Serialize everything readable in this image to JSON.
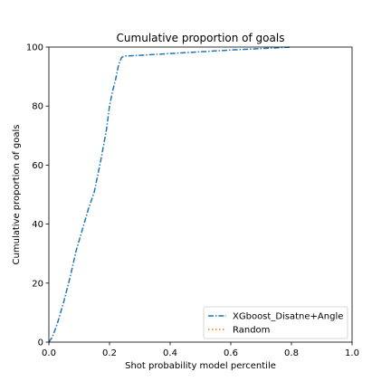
{
  "chart_data": {
    "type": "line",
    "title": "Cumulative proportion of goals",
    "xlabel": "Shot probability model percentile",
    "ylabel": "Cumulative proportion of goals",
    "xlim": [
      0.0,
      1.0
    ],
    "ylim": [
      0,
      100
    ],
    "xticks": [
      "0.0",
      "0.2",
      "0.4",
      "0.6",
      "0.8",
      "1.0"
    ],
    "yticks": [
      "0",
      "20",
      "40",
      "60",
      "80",
      "100"
    ],
    "grid": false,
    "legend_position": "lower-right",
    "series": [
      {
        "name": "XGboost_Disatne+Angle",
        "color": "#1f77b4",
        "linestyle": "dashdot",
        "x": [
          0.0,
          0.01,
          0.02,
          0.03,
          0.05,
          0.07,
          0.09,
          0.11,
          0.13,
          0.15,
          0.17,
          0.19,
          0.2,
          0.21,
          0.22,
          0.23,
          0.24,
          0.25,
          0.26,
          0.3,
          0.4,
          0.5,
          0.6,
          0.7,
          0.8
        ],
        "y": [
          0,
          1.5,
          4,
          7,
          14,
          22,
          31,
          38,
          45,
          51,
          61,
          72,
          80,
          85,
          89,
          94,
          96.5,
          97,
          97,
          97.2,
          97.8,
          98.4,
          99,
          99.5,
          100
        ]
      },
      {
        "name": "Random",
        "color": "#ff7f0e",
        "linestyle": "dotted",
        "x": [],
        "y": []
      }
    ]
  }
}
